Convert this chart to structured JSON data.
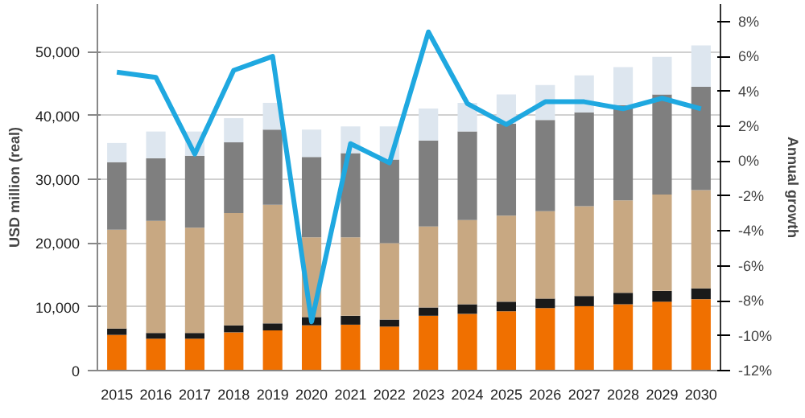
{
  "chart_data": {
    "type": "bar",
    "stacked": true,
    "ylabel": "USD million (real)",
    "y2label": "Annual growth",
    "categories": [
      "2015",
      "2016",
      "2017",
      "2018",
      "2019",
      "2020",
      "2021",
      "2022",
      "2023",
      "2024",
      "2025",
      "2026",
      "2027",
      "2028",
      "2029",
      "2030"
    ],
    "series": [
      {
        "color": "#f07000",
        "values": [
          5600,
          5000,
          5000,
          6000,
          6300,
          7100,
          7200,
          6900,
          8600,
          8900,
          9300,
          9800,
          10100,
          10400,
          10800,
          11200
        ]
      },
      {
        "color": "#1a1a1a",
        "values": [
          1000,
          900,
          900,
          1100,
          1100,
          1300,
          1400,
          1100,
          1300,
          1500,
          1500,
          1500,
          1600,
          1800,
          1700,
          1700
        ]
      },
      {
        "color": "#c8a882",
        "values": [
          15500,
          17600,
          16500,
          17600,
          18600,
          12500,
          12300,
          12000,
          12700,
          13200,
          13500,
          13700,
          14100,
          14500,
          15100,
          15400
        ]
      },
      {
        "color": "#7f7f7f",
        "values": [
          10600,
          9800,
          11300,
          11100,
          11800,
          12600,
          13200,
          13100,
          13500,
          13900,
          14400,
          14300,
          14700,
          14900,
          15700,
          16200
        ]
      },
      {
        "color": "#dde6ef",
        "values": [
          3000,
          4200,
          3800,
          3800,
          4200,
          4300,
          4200,
          5200,
          5000,
          4500,
          4600,
          5500,
          5800,
          6000,
          5900,
          6500
        ]
      },
      {
        "type": "line",
        "axis": "y2",
        "color": "#1fa8e0",
        "values": [
          5.1,
          4.8,
          0.4,
          5.2,
          6.0,
          -9.2,
          1.0,
          -0.1,
          7.4,
          3.3,
          2.1,
          3.4,
          3.4,
          3.0,
          3.6,
          3.0
        ]
      }
    ],
    "ylim": [
      0,
      57500
    ],
    "yticks": [
      {
        "value": 0,
        "label": "0"
      },
      {
        "value": 10000,
        "label": "10,000"
      },
      {
        "value": 20000,
        "label": "20,000"
      },
      {
        "value": 30000,
        "label": "30,000"
      },
      {
        "value": 40000,
        "label": "40,000"
      },
      {
        "value": 50000,
        "label": "50,000"
      }
    ],
    "y2lim": [
      -12,
      9
    ],
    "y2ticks": [
      {
        "value": -12,
        "label": "-12%"
      },
      {
        "value": -10,
        "label": "-10%"
      },
      {
        "value": -8,
        "label": "-8%"
      },
      {
        "value": -6,
        "label": "-6%"
      },
      {
        "value": -4,
        "label": "-4%"
      },
      {
        "value": -2,
        "label": "-2%"
      },
      {
        "value": 0,
        "label": "0%"
      },
      {
        "value": 2,
        "label": "2%"
      },
      {
        "value": 4,
        "label": "4%"
      },
      {
        "value": 6,
        "label": "6%"
      },
      {
        "value": 8,
        "label": "8%"
      }
    ],
    "grid": "y"
  }
}
